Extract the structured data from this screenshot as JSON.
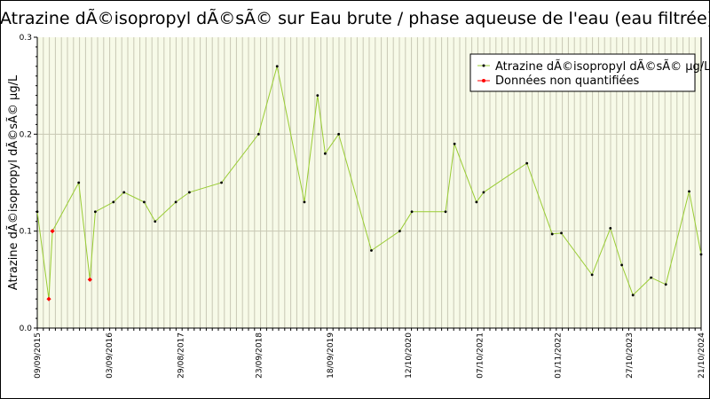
{
  "chart_data": {
    "type": "line",
    "title": "Atrazine dÃ©isopropyl dÃ©sÃ© sur Eau brute / phase aqueuse de l'eau (eau filtrée)",
    "ylabel": "Atrazine dÃ©isopropyl dÃ©sÃ© µg/L",
    "xlabel": "",
    "x_range": [
      "2015-09-09",
      "2024-10-21"
    ],
    "ylim": [
      0.0,
      0.3
    ],
    "y_ticks": [
      "0.0",
      "0.1",
      "0.2",
      "0.3"
    ],
    "x_ticks": [
      {
        "date": "2015-09-09",
        "label": "09/09/2015"
      },
      {
        "date": "2016-09-03",
        "label": "03/09/2016"
      },
      {
        "date": "2017-08-29",
        "label": "29/08/2017"
      },
      {
        "date": "2018-09-23",
        "label": "23/09/2018"
      },
      {
        "date": "2019-09-18",
        "label": "18/09/2019"
      },
      {
        "date": "2020-10-12",
        "label": "12/10/2020"
      },
      {
        "date": "2021-10-07",
        "label": "07/10/2021"
      },
      {
        "date": "2022-11-01",
        "label": "01/11/2022"
      },
      {
        "date": "2023-10-27",
        "label": "27/10/2023"
      },
      {
        "date": "2024-10-21",
        "label": "21/10/2024"
      }
    ],
    "grid": true,
    "legend_position": "top-right",
    "series": [
      {
        "name": "Atrazine dÃ©isopropyl dÃ©sÃ© µg/L",
        "color": "#99cc33",
        "marker_color": "#000000",
        "points": [
          {
            "x": "2015-09-09",
            "y": 0.12
          },
          {
            "x": "2015-11-06",
            "y": 0.03
          },
          {
            "x": "2015-11-24",
            "y": 0.1
          },
          {
            "x": "2016-04-04",
            "y": 0.15
          },
          {
            "x": "2016-05-30",
            "y": 0.05
          },
          {
            "x": "2016-06-26",
            "y": 0.12
          },
          {
            "x": "2016-09-25",
            "y": 0.13
          },
          {
            "x": "2016-11-17",
            "y": 0.14
          },
          {
            "x": "2017-02-26",
            "y": 0.13
          },
          {
            "x": "2017-04-22",
            "y": 0.11
          },
          {
            "x": "2017-08-04",
            "y": 0.13
          },
          {
            "x": "2017-10-11",
            "y": 0.14
          },
          {
            "x": "2018-03-21",
            "y": 0.15
          },
          {
            "x": "2018-09-23",
            "y": 0.2
          },
          {
            "x": "2018-12-25",
            "y": 0.27
          },
          {
            "x": "2019-05-11",
            "y": 0.13
          },
          {
            "x": "2019-07-16",
            "y": 0.24
          },
          {
            "x": "2019-08-23",
            "y": 0.18
          },
          {
            "x": "2019-10-30",
            "y": 0.2
          },
          {
            "x": "2020-04-11",
            "y": 0.08
          },
          {
            "x": "2020-08-31",
            "y": 0.1
          },
          {
            "x": "2020-10-31",
            "y": 0.12
          },
          {
            "x": "2021-04-18",
            "y": 0.12
          },
          {
            "x": "2021-06-02",
            "y": 0.19
          },
          {
            "x": "2021-09-20",
            "y": 0.13
          },
          {
            "x": "2021-10-26",
            "y": 0.14
          },
          {
            "x": "2022-05-31",
            "y": 0.17
          },
          {
            "x": "2022-10-05",
            "y": 0.097
          },
          {
            "x": "2022-11-20",
            "y": 0.098
          },
          {
            "x": "2023-04-23",
            "y": 0.055
          },
          {
            "x": "2023-07-24",
            "y": 0.103
          },
          {
            "x": "2023-09-19",
            "y": 0.065
          },
          {
            "x": "2023-11-14",
            "y": 0.034
          },
          {
            "x": "2024-02-13",
            "y": 0.052
          },
          {
            "x": "2024-04-27",
            "y": 0.045
          },
          {
            "x": "2024-08-22",
            "y": 0.141
          },
          {
            "x": "2024-10-21",
            "y": 0.076
          }
        ]
      },
      {
        "name": "Données non quantifiées",
        "color": "#ff0000",
        "marker_color": "#ff0000",
        "points": [
          {
            "x": "2015-11-06",
            "y": 0.03
          },
          {
            "x": "2015-11-24",
            "y": 0.1
          },
          {
            "x": "2016-05-30",
            "y": 0.05
          }
        ]
      }
    ]
  }
}
